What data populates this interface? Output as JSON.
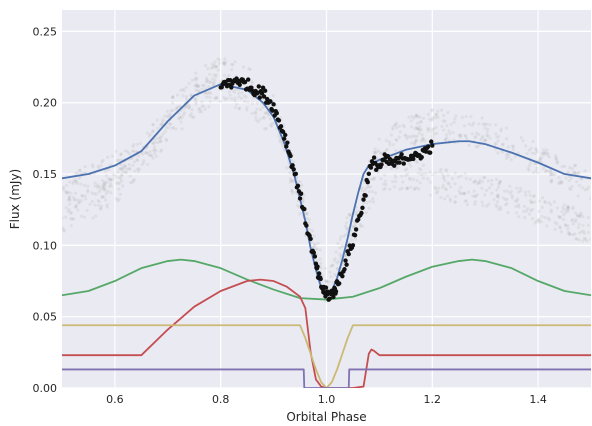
{
  "chart_data": {
    "type": "line",
    "xlabel": "Orbital Phase",
    "ylabel": "Flux (mJy)",
    "xlim": [
      0.5,
      1.5
    ],
    "ylim": [
      0.0,
      0.265
    ],
    "xticks": [
      0.6,
      0.8,
      1.0,
      1.2,
      1.4
    ],
    "yticks": [
      0.0,
      0.05,
      0.1,
      0.15,
      0.2,
      0.25
    ],
    "xtick_labels": [
      "0.6",
      "0.8",
      "1.0",
      "1.2",
      "1.4"
    ],
    "ytick_labels": [
      "0.00",
      "0.05",
      "0.10",
      "0.15",
      "0.20",
      "0.25"
    ],
    "grid": true,
    "background": "#eaeaf2",
    "series": [
      {
        "color": "#4c72b0",
        "x": [
          0.5,
          0.55,
          0.6,
          0.65,
          0.7,
          0.75,
          0.8,
          0.85,
          0.88,
          0.9,
          0.92,
          0.94,
          0.96,
          0.97,
          0.98,
          0.99,
          1.0,
          1.01,
          1.02,
          1.03,
          1.04,
          1.05,
          1.06,
          1.07,
          1.08,
          1.1,
          1.15,
          1.2,
          1.25,
          1.27,
          1.3,
          1.35,
          1.4,
          1.45,
          1.5
        ],
        "y": [
          0.147,
          0.15,
          0.156,
          0.166,
          0.187,
          0.205,
          0.213,
          0.209,
          0.2,
          0.19,
          0.172,
          0.148,
          0.117,
          0.098,
          0.083,
          0.07,
          0.065,
          0.068,
          0.077,
          0.09,
          0.105,
          0.122,
          0.137,
          0.15,
          0.156,
          0.16,
          0.167,
          0.171,
          0.173,
          0.173,
          0.171,
          0.165,
          0.158,
          0.15,
          0.147
        ]
      },
      {
        "color": "#55a868",
        "x": [
          0.5,
          0.55,
          0.6,
          0.65,
          0.7,
          0.725,
          0.75,
          0.8,
          0.85,
          0.9,
          0.95,
          1.0,
          1.05,
          1.1,
          1.15,
          1.2,
          1.25,
          1.275,
          1.3,
          1.35,
          1.4,
          1.45,
          1.5
        ],
        "y": [
          0.065,
          0.068,
          0.075,
          0.084,
          0.089,
          0.09,
          0.089,
          0.084,
          0.076,
          0.069,
          0.063,
          0.062,
          0.064,
          0.07,
          0.078,
          0.085,
          0.089,
          0.09,
          0.089,
          0.084,
          0.075,
          0.068,
          0.065
        ]
      },
      {
        "color": "#c44e52",
        "x": [
          0.5,
          0.55,
          0.6,
          0.65,
          0.7,
          0.75,
          0.8,
          0.85,
          0.875,
          0.9,
          0.925,
          0.95,
          0.96,
          0.97,
          0.98,
          0.99,
          1.0,
          1.05,
          1.07,
          1.08,
          1.085,
          1.09,
          1.1,
          1.15,
          1.2,
          1.3,
          1.4,
          1.5
        ],
        "y": [
          0.023,
          0.023,
          0.023,
          0.023,
          0.041,
          0.057,
          0.068,
          0.075,
          0.076,
          0.075,
          0.071,
          0.064,
          0.056,
          0.025,
          0.006,
          0.001,
          0.0,
          0.0,
          0.001,
          0.024,
          0.027,
          0.026,
          0.023,
          0.023,
          0.023,
          0.023,
          0.023,
          0.023
        ]
      },
      {
        "color": "#ccb974",
        "x": [
          0.5,
          0.6,
          0.7,
          0.8,
          0.9,
          0.95,
          0.96,
          0.97,
          0.98,
          0.99,
          1.0,
          1.01,
          1.02,
          1.03,
          1.04,
          1.05,
          1.1,
          1.2,
          1.3,
          1.4,
          1.5
        ],
        "y": [
          0.044,
          0.044,
          0.044,
          0.044,
          0.044,
          0.044,
          0.035,
          0.024,
          0.013,
          0.004,
          0.0,
          0.004,
          0.013,
          0.024,
          0.035,
          0.044,
          0.044,
          0.044,
          0.044,
          0.044,
          0.044
        ]
      },
      {
        "color": "#8172b2",
        "x": [
          0.5,
          0.6,
          0.7,
          0.8,
          0.9,
          0.957,
          0.958,
          1.0,
          1.042,
          1.043,
          1.1,
          1.2,
          1.3,
          1.4,
          1.5
        ],
        "y": [
          0.013,
          0.013,
          0.013,
          0.013,
          0.013,
          0.013,
          0.0,
          0.0,
          0.0,
          0.013,
          0.013,
          0.013,
          0.013,
          0.013,
          0.013
        ]
      }
    ],
    "scatter": {
      "color": "#111111",
      "x": [
        0.8,
        0.81,
        0.82,
        0.83,
        0.84,
        0.85,
        0.86,
        0.87,
        0.88,
        0.89,
        0.9,
        0.91,
        0.92,
        0.93,
        0.94,
        0.95,
        0.96,
        0.97,
        0.98,
        0.985,
        0.99,
        0.995,
        1.0,
        1.005,
        1.01,
        1.015,
        1.02,
        1.03,
        1.04,
        1.05,
        1.06,
        1.07,
        1.08,
        1.09,
        1.1,
        1.11,
        1.12,
        1.13,
        1.14,
        1.15,
        1.16,
        1.17,
        1.18,
        1.19,
        1.2
      ],
      "y": [
        0.21,
        0.215,
        0.212,
        0.217,
        0.214,
        0.213,
        0.21,
        0.208,
        0.207,
        0.202,
        0.197,
        0.187,
        0.178,
        0.165,
        0.15,
        0.136,
        0.118,
        0.102,
        0.086,
        0.078,
        0.072,
        0.068,
        0.066,
        0.065,
        0.066,
        0.068,
        0.072,
        0.082,
        0.092,
        0.103,
        0.118,
        0.13,
        0.152,
        0.158,
        0.155,
        0.16,
        0.158,
        0.157,
        0.16,
        0.162,
        0.163,
        0.161,
        0.165,
        0.167,
        0.17
      ]
    },
    "background_scatter": {
      "color": "#8a8a8a",
      "upper_x": [
        0.5,
        0.55,
        0.6,
        0.65,
        0.7,
        0.75,
        0.8,
        0.85,
        0.9,
        0.95,
        1.0,
        1.05,
        1.1,
        1.15,
        1.2,
        1.25,
        1.3,
        1.35,
        1.4,
        1.45,
        1.5
      ],
      "upper_y": [
        0.14,
        0.145,
        0.155,
        0.165,
        0.19,
        0.21,
        0.222,
        0.215,
        0.195,
        0.14,
        0.07,
        0.12,
        0.165,
        0.18,
        0.185,
        0.182,
        0.178,
        0.17,
        0.16,
        0.15,
        0.14
      ],
      "lower_x": [
        0.5,
        0.55,
        0.6,
        0.65,
        0.7,
        0.75,
        0.8,
        0.85,
        0.9,
        0.95,
        1.0,
        1.05,
        1.1,
        1.15,
        1.2,
        1.25,
        1.3,
        1.35,
        1.4,
        1.45,
        1.5
      ],
      "lower_y": [
        0.12,
        0.128,
        0.14,
        0.16,
        0.18,
        0.2,
        0.21,
        0.205,
        0.185,
        0.13,
        0.065,
        0.11,
        0.15,
        0.15,
        0.145,
        0.14,
        0.138,
        0.132,
        0.125,
        0.118,
        0.112
      ]
    }
  }
}
